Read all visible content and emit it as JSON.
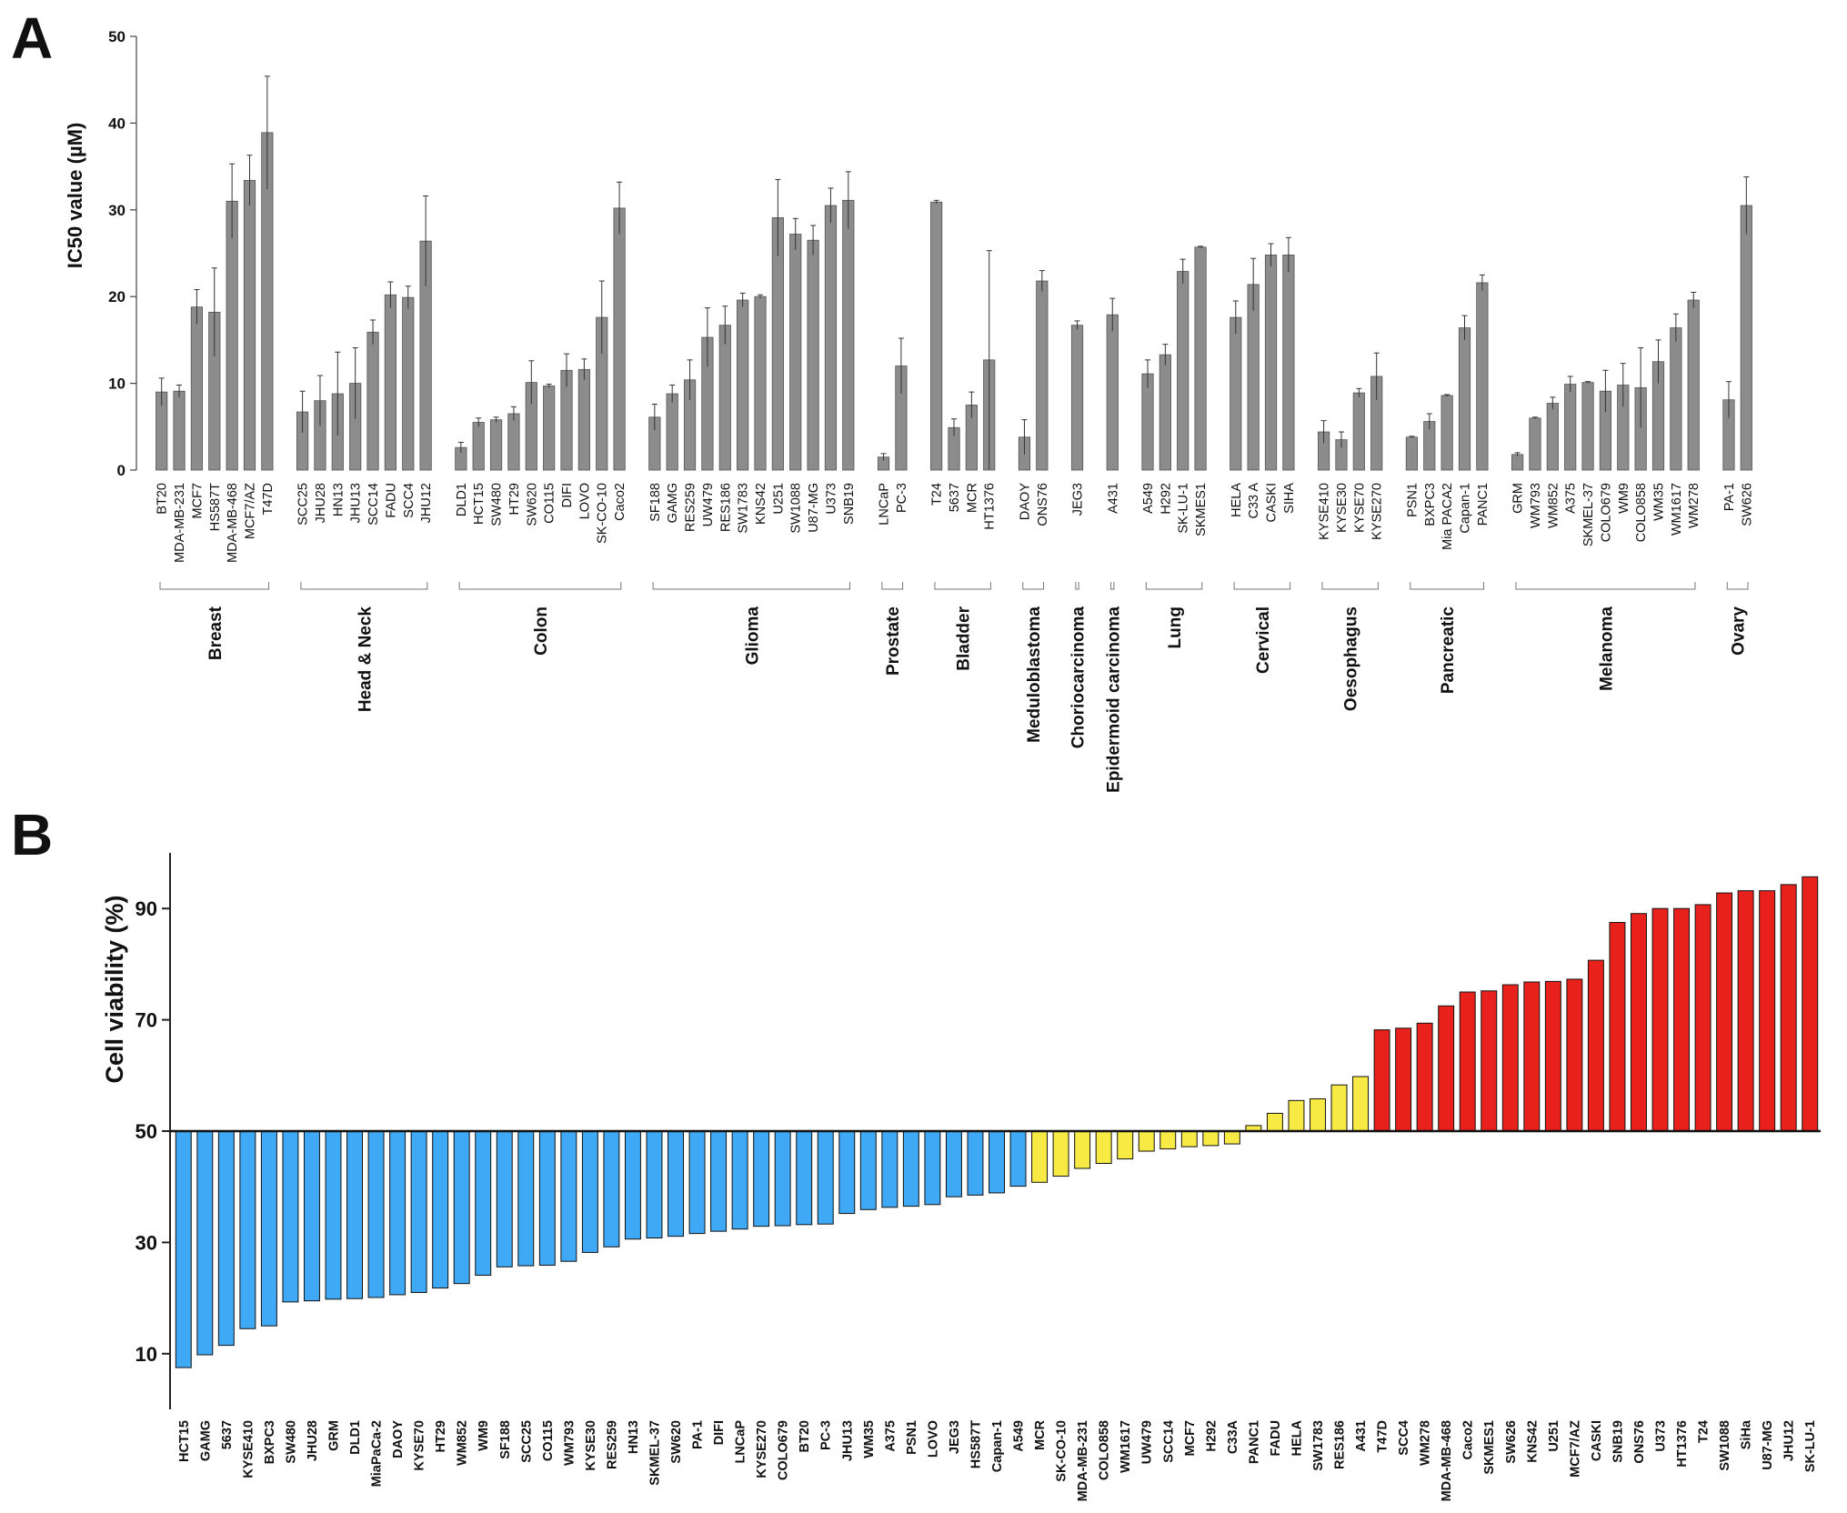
{
  "panels": {
    "a": "A",
    "b": "B"
  },
  "chart_data": [
    {
      "type": "bar",
      "ylabel": "IC50 value (µM)",
      "xlabel": "",
      "ylim": [
        0,
        50
      ],
      "yticks": [
        0,
        10,
        20,
        30,
        40,
        50
      ],
      "bar_color": "#8c8c8c",
      "error_bars": true,
      "grid": false,
      "groups": [
        {
          "name": "Breast",
          "lines": [
            "Breast"
          ],
          "items": [
            {
              "label": "BT20",
              "value": 9.0,
              "err": 1.6
            },
            {
              "label": "MDA-MB-231",
              "value": 9.1,
              "err": 0.7
            },
            {
              "label": "MCF7",
              "value": 18.8,
              "err": 2.0
            },
            {
              "label": "HS587T",
              "value": 18.2,
              "err": 5.1
            },
            {
              "label": "MDA-MB-468",
              "value": 31.0,
              "err": 4.3
            },
            {
              "label": "MCF7/AZ",
              "value": 33.4,
              "err": 2.9
            },
            {
              "label": "T47D",
              "value": 38.9,
              "err": 6.5
            }
          ]
        },
        {
          "name": "Head & Neck",
          "lines": [
            "Head & Neck"
          ],
          "items": [
            {
              "label": "SCC25",
              "value": 6.7,
              "err": 2.4
            },
            {
              "label": "JHU28",
              "value": 8.0,
              "err": 2.9
            },
            {
              "label": "HN13",
              "value": 8.8,
              "err": 4.8
            },
            {
              "label": "JHU13",
              "value": 10.0,
              "err": 4.1
            },
            {
              "label": "SCC14",
              "value": 15.9,
              "err": 1.4
            },
            {
              "label": "FADU",
              "value": 20.2,
              "err": 1.5
            },
            {
              "label": "SCC4",
              "value": 19.9,
              "err": 1.3
            },
            {
              "label": "JHU12",
              "value": 26.4,
              "err": 5.2
            }
          ]
        },
        {
          "name": "Colon",
          "lines": [
            "Colon"
          ],
          "items": [
            {
              "label": "DLD1",
              "value": 2.6,
              "err": 0.6
            },
            {
              "label": "HCT15",
              "value": 5.5,
              "err": 0.5
            },
            {
              "label": "SW480",
              "value": 5.8,
              "err": 0.3
            },
            {
              "label": "HT29",
              "value": 6.5,
              "err": 0.8
            },
            {
              "label": "SW620",
              "value": 10.1,
              "err": 2.5
            },
            {
              "label": "CO115",
              "value": 9.7,
              "err": 0.2
            },
            {
              "label": "DIFI",
              "value": 11.5,
              "err": 1.9
            },
            {
              "label": "LOVO",
              "value": 11.6,
              "err": 1.2
            },
            {
              "label": "SK-CO-10",
              "value": 17.6,
              "err": 4.2
            },
            {
              "label": "Caco2",
              "value": 30.2,
              "err": 3.0
            }
          ]
        },
        {
          "name": "Glioma",
          "lines": [
            "Glioma"
          ],
          "items": [
            {
              "label": "SF188",
              "value": 6.1,
              "err": 1.5
            },
            {
              "label": "GAMG",
              "value": 8.8,
              "err": 1.0
            },
            {
              "label": "RES259",
              "value": 10.4,
              "err": 2.3
            },
            {
              "label": "UW479",
              "value": 15.3,
              "err": 3.4
            },
            {
              "label": "RES186",
              "value": 16.7,
              "err": 2.2
            },
            {
              "label": "SW1783",
              "value": 19.6,
              "err": 0.8
            },
            {
              "label": "KNS42",
              "value": 20.0,
              "err": 0.2
            },
            {
              "label": "U251",
              "value": 29.1,
              "err": 4.4
            },
            {
              "label": "SW1088",
              "value": 27.2,
              "err": 1.8
            },
            {
              "label": "U87-MG",
              "value": 26.5,
              "err": 1.7
            },
            {
              "label": "U373",
              "value": 30.5,
              "err": 2.0
            },
            {
              "label": "SNB19",
              "value": 31.1,
              "err": 3.3
            }
          ]
        },
        {
          "name": "Prostate",
          "lines": [
            "Prostate"
          ],
          "items": [
            {
              "label": "LNCaP",
              "value": 1.5,
              "err": 0.4
            },
            {
              "label": "PC-3",
              "value": 12.0,
              "err": 3.2
            }
          ]
        },
        {
          "name": "Bladder",
          "lines": [
            "Bladder"
          ],
          "items": [
            {
              "label": "T24",
              "value": 30.9,
              "err": 0.2
            },
            {
              "label": "5637",
              "value": 4.9,
              "err": 1.0
            },
            {
              "label": "MCR",
              "value": 7.5,
              "err": 1.5
            },
            {
              "label": "HT1376",
              "value": 12.7,
              "err": 12.6
            }
          ]
        },
        {
          "name": "Meduloblastoma",
          "lines": [
            "Meduloblastoma"
          ],
          "items": [
            {
              "label": "DAOY",
              "value": 3.8,
              "err": 2.0
            },
            {
              "label": "ONS76",
              "value": 21.8,
              "err": 1.2
            }
          ]
        },
        {
          "name": "Choriocarcinoma",
          "lines": [
            "Choriocarcinoma"
          ],
          "items": [
            {
              "label": "JEG3",
              "value": 16.7,
              "err": 0.5
            }
          ]
        },
        {
          "name": "Epidermoid carcinoma",
          "lines": [
            "Epidermoid carcinoma"
          ],
          "items": [
            {
              "label": "A431",
              "value": 17.9,
              "err": 1.9
            }
          ]
        },
        {
          "name": "Lung",
          "lines": [
            "Lung"
          ],
          "items": [
            {
              "label": "A549",
              "value": 11.1,
              "err": 1.6
            },
            {
              "label": "H292",
              "value": 13.3,
              "err": 1.2
            },
            {
              "label": "SK-LU-1",
              "value": 22.9,
              "err": 1.4
            },
            {
              "label": "SKMES1",
              "value": 25.7,
              "err": 0.1
            }
          ]
        },
        {
          "name": "Cervical",
          "lines": [
            "Cervical"
          ],
          "items": [
            {
              "label": "HELA",
              "value": 17.6,
              "err": 1.9
            },
            {
              "label": "C33 A",
              "value": 21.4,
              "err": 3.0
            },
            {
              "label": "CASKI",
              "value": 24.8,
              "err": 1.3
            },
            {
              "label": "SIHA",
              "value": 24.8,
              "err": 2.0
            }
          ]
        },
        {
          "name": "Oesophagus",
          "lines": [
            "Oesophagus"
          ],
          "items": [
            {
              "label": "KYSE410",
              "value": 4.4,
              "err": 1.3
            },
            {
              "label": "KYSE30",
              "value": 3.5,
              "err": 0.9
            },
            {
              "label": "KYSE70",
              "value": 8.9,
              "err": 0.5
            },
            {
              "label": "KYSE270",
              "value": 10.8,
              "err": 2.7
            }
          ]
        },
        {
          "name": "Pancreatic",
          "lines": [
            "Pancreatic"
          ],
          "items": [
            {
              "label": "PSN1",
              "value": 3.8,
              "err": 0.1
            },
            {
              "label": "BXPC3",
              "value": 5.6,
              "err": 0.9
            },
            {
              "label": "Mia PACA2",
              "value": 8.6,
              "err": 0.1
            },
            {
              "label": "Capan-1",
              "value": 16.4,
              "err": 1.4
            },
            {
              "label": "PANC1",
              "value": 21.6,
              "err": 0.9
            }
          ]
        },
        {
          "name": "Melanoma",
          "lines": [
            "Melanoma"
          ],
          "items": [
            {
              "label": "GRM",
              "value": 1.8,
              "err": 0.2
            },
            {
              "label": "WM793",
              "value": 6.0,
              "err": 0.1
            },
            {
              "label": "WM852",
              "value": 7.7,
              "err": 0.7
            },
            {
              "label": "A375",
              "value": 9.9,
              "err": 0.9
            },
            {
              "label": "SKMEL-37",
              "value": 10.1,
              "err": 0.1
            },
            {
              "label": "COLO679",
              "value": 9.1,
              "err": 2.4
            },
            {
              "label": "WM9",
              "value": 9.8,
              "err": 2.5
            },
            {
              "label": "COLO858",
              "value": 9.5,
              "err": 4.6
            },
            {
              "label": "WM35",
              "value": 12.5,
              "err": 2.5
            },
            {
              "label": "WM1617",
              "value": 16.4,
              "err": 1.6
            },
            {
              "label": "WM278",
              "value": 19.6,
              "err": 0.9
            }
          ]
        },
        {
          "name": "Ovary",
          "lines": [
            "Ovary"
          ],
          "items": [
            {
              "label": "PA-1",
              "value": 8.1,
              "err": 2.1
            },
            {
              "label": "SW626",
              "value": 30.5,
              "err": 3.3
            }
          ]
        }
      ]
    },
    {
      "type": "bar",
      "ylabel": "Cell viability (%)",
      "xlabel": "",
      "ylim": [
        0,
        100
      ],
      "yticks": [
        10,
        30,
        50,
        70,
        90
      ],
      "baseline": 50,
      "grid": false,
      "colors": {
        "low": "#3fa9f5",
        "mid": "#f7ea45",
        "high": "#e8211c"
      },
      "bars": [
        {
          "label": "HCT15",
          "value": 7.5,
          "color": "low"
        },
        {
          "label": "GAMG",
          "value": 9.8,
          "color": "low"
        },
        {
          "label": "5637",
          "value": 11.5,
          "color": "low"
        },
        {
          "label": "KYSE410",
          "value": 14.5,
          "color": "low"
        },
        {
          "label": "BXPC3",
          "value": 15.0,
          "color": "low"
        },
        {
          "label": "SW480",
          "value": 19.3,
          "color": "low"
        },
        {
          "label": "JHU28",
          "value": 19.5,
          "color": "low"
        },
        {
          "label": "GRM",
          "value": 19.8,
          "color": "low"
        },
        {
          "label": "DLD1",
          "value": 19.9,
          "color": "low"
        },
        {
          "label": "MiaPaCa-2",
          "value": 20.1,
          "color": "low"
        },
        {
          "label": "DAOY",
          "value": 20.6,
          "color": "low"
        },
        {
          "label": "KYSE70",
          "value": 21.0,
          "color": "low"
        },
        {
          "label": "HT29",
          "value": 21.8,
          "color": "low"
        },
        {
          "label": "WM852",
          "value": 22.6,
          "color": "low"
        },
        {
          "label": "WM9",
          "value": 24.1,
          "color": "low"
        },
        {
          "label": "SF188",
          "value": 25.6,
          "color": "low"
        },
        {
          "label": "SCC25",
          "value": 25.8,
          "color": "low"
        },
        {
          "label": "CO115",
          "value": 25.9,
          "color": "low"
        },
        {
          "label": "WM793",
          "value": 26.6,
          "color": "low"
        },
        {
          "label": "KYSE30",
          "value": 28.2,
          "color": "low"
        },
        {
          "label": "RES259",
          "value": 29.2,
          "color": "low"
        },
        {
          "label": "HN13",
          "value": 30.6,
          "color": "low"
        },
        {
          "label": "SKMEL-37",
          "value": 30.8,
          "color": "low"
        },
        {
          "label": "SW620",
          "value": 31.1,
          "color": "low"
        },
        {
          "label": "PA-1",
          "value": 31.6,
          "color": "low"
        },
        {
          "label": "DIFI",
          "value": 32.0,
          "color": "low"
        },
        {
          "label": "LNCaP",
          "value": 32.4,
          "color": "low"
        },
        {
          "label": "KYSE270",
          "value": 32.9,
          "color": "low"
        },
        {
          "label": "COLO679",
          "value": 33.0,
          "color": "low"
        },
        {
          "label": "BT20",
          "value": 33.2,
          "color": "low"
        },
        {
          "label": "PC-3",
          "value": 33.3,
          "color": "low"
        },
        {
          "label": "JHU13",
          "value": 35.2,
          "color": "low"
        },
        {
          "label": "WM35",
          "value": 35.9,
          "color": "low"
        },
        {
          "label": "A375",
          "value": 36.3,
          "color": "low"
        },
        {
          "label": "PSN1",
          "value": 36.5,
          "color": "low"
        },
        {
          "label": "LOVO",
          "value": 36.8,
          "color": "low"
        },
        {
          "label": "JEG3",
          "value": 38.2,
          "color": "low"
        },
        {
          "label": "HS587T",
          "value": 38.5,
          "color": "low"
        },
        {
          "label": "Capan-1",
          "value": 38.9,
          "color": "low"
        },
        {
          "label": "A549",
          "value": 40.1,
          "color": "low"
        },
        {
          "label": "MCR",
          "value": 40.8,
          "color": "mid"
        },
        {
          "label": "SK-CO-10",
          "value": 41.9,
          "color": "mid"
        },
        {
          "label": "MDA-MB-231",
          "value": 43.3,
          "color": "mid"
        },
        {
          "label": "COLO858",
          "value": 44.2,
          "color": "mid"
        },
        {
          "label": "WM1617",
          "value": 45.0,
          "color": "mid"
        },
        {
          "label": "UW479",
          "value": 46.4,
          "color": "mid"
        },
        {
          "label": "SCC14",
          "value": 46.8,
          "color": "mid"
        },
        {
          "label": "MCF7",
          "value": 47.2,
          "color": "mid"
        },
        {
          "label": "H292",
          "value": 47.4,
          "color": "mid"
        },
        {
          "label": "C33A",
          "value": 47.7,
          "color": "mid"
        },
        {
          "label": "PANC1",
          "value": 51.0,
          "color": "mid"
        },
        {
          "label": "FADU",
          "value": 53.2,
          "color": "mid"
        },
        {
          "label": "HELA",
          "value": 55.5,
          "color": "mid"
        },
        {
          "label": "SW1783",
          "value": 55.8,
          "color": "mid"
        },
        {
          "label": "RES186",
          "value": 58.3,
          "color": "mid"
        },
        {
          "label": "A431",
          "value": 59.8,
          "color": "mid"
        },
        {
          "label": "T47D",
          "value": 68.2,
          "color": "high"
        },
        {
          "label": "SCC4",
          "value": 68.5,
          "color": "high"
        },
        {
          "label": "WM278",
          "value": 69.4,
          "color": "high"
        },
        {
          "label": "MDA-MB-468",
          "value": 72.5,
          "color": "high"
        },
        {
          "label": "Caco2",
          "value": 75.0,
          "color": "high"
        },
        {
          "label": "SKMES1",
          "value": 75.2,
          "color": "high"
        },
        {
          "label": "SW626",
          "value": 76.3,
          "color": "high"
        },
        {
          "label": "KNS42",
          "value": 76.8,
          "color": "high"
        },
        {
          "label": "U251",
          "value": 76.9,
          "color": "high"
        },
        {
          "label": "MCF7/AZ",
          "value": 77.3,
          "color": "high"
        },
        {
          "label": "CASKI",
          "value": 80.7,
          "color": "high"
        },
        {
          "label": "SNB19",
          "value": 87.5,
          "color": "high"
        },
        {
          "label": "ONS76",
          "value": 89.1,
          "color": "high"
        },
        {
          "label": "U373",
          "value": 90.0,
          "color": "high"
        },
        {
          "label": "HT1376",
          "value": 90.0,
          "color": "high"
        },
        {
          "label": "T24",
          "value": 90.7,
          "color": "high"
        },
        {
          "label": "SW1088",
          "value": 92.8,
          "color": "high"
        },
        {
          "label": "SiHa",
          "value": 93.2,
          "color": "high"
        },
        {
          "label": "U87-MG",
          "value": 93.2,
          "color": "high"
        },
        {
          "label": "JHU12",
          "value": 94.3,
          "color": "high"
        },
        {
          "label": "SK-LU-1",
          "value": 95.7,
          "color": "high"
        }
      ]
    }
  ]
}
